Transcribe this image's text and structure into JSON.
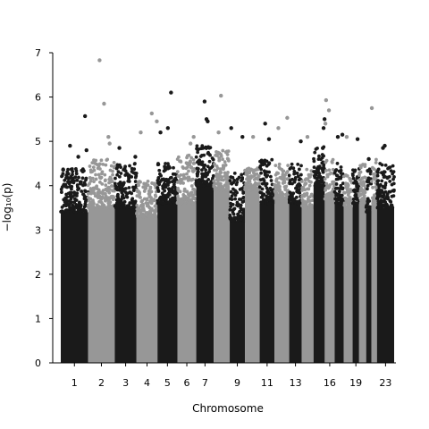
{
  "chart_data": {
    "type": "scatter",
    "title": "",
    "xlabel": "Chromosome",
    "ylabel": "−log₁₀(p)",
    "ylim": [
      0,
      7
    ],
    "yticks": [
      0,
      1,
      2,
      3,
      4,
      5,
      6,
      7
    ],
    "grid": false,
    "legend": "none",
    "colors": [
      "#1a1a1a",
      "#979797"
    ],
    "chromosomes": [
      {
        "label": "1",
        "show_label": true,
        "len": 248,
        "base": 3.4,
        "top": 4.4
      },
      {
        "label": "2",
        "show_label": true,
        "len": 242,
        "base": 3.5,
        "top": 4.6
      },
      {
        "label": "3",
        "show_label": true,
        "len": 198,
        "base": 3.5,
        "top": 4.5
      },
      {
        "label": "4",
        "show_label": true,
        "len": 190,
        "base": 3.3,
        "top": 4.1
      },
      {
        "label": "5",
        "show_label": true,
        "len": 181,
        "base": 3.6,
        "top": 4.5
      },
      {
        "label": "6",
        "show_label": true,
        "len": 171,
        "base": 3.6,
        "top": 4.7
      },
      {
        "label": "7",
        "show_label": true,
        "len": 159,
        "base": 4.0,
        "top": 4.9
      },
      {
        "label": "8",
        "show_label": false,
        "len": 145,
        "base": 3.9,
        "top": 4.8
      },
      {
        "label": "9",
        "show_label": true,
        "len": 138,
        "base": 3.2,
        "top": 4.3
      },
      {
        "label": "10",
        "show_label": false,
        "len": 134,
        "base": 3.9,
        "top": 4.4
      },
      {
        "label": "11",
        "show_label": true,
        "len": 135,
        "base": 3.6,
        "top": 4.6
      },
      {
        "label": "12",
        "show_label": false,
        "len": 133,
        "base": 3.7,
        "top": 4.5
      },
      {
        "label": "13",
        "show_label": true,
        "len": 114,
        "base": 3.6,
        "top": 4.5
      },
      {
        "label": "14",
        "show_label": false,
        "len": 107,
        "base": 3.5,
        "top": 4.4
      },
      {
        "label": "15",
        "show_label": false,
        "len": 102,
        "base": 4.0,
        "top": 4.9
      },
      {
        "label": "16",
        "show_label": true,
        "len": 90,
        "base": 3.7,
        "top": 4.6
      },
      {
        "label": "17",
        "show_label": false,
        "len": 83,
        "base": 3.6,
        "top": 4.5
      },
      {
        "label": "18",
        "show_label": false,
        "len": 80,
        "base": 3.5,
        "top": 4.3
      },
      {
        "label": "19",
        "show_label": true,
        "len": 59,
        "base": 3.6,
        "top": 4.4
      },
      {
        "label": "20",
        "show_label": false,
        "len": 64,
        "base": 3.6,
        "top": 4.5
      },
      {
        "label": "21",
        "show_label": false,
        "len": 47,
        "base": 3.4,
        "top": 4.4
      },
      {
        "label": "22",
        "show_label": false,
        "len": 51,
        "base": 3.6,
        "top": 4.6
      },
      {
        "label": "23",
        "show_label": true,
        "len": 156,
        "base": 3.5,
        "top": 4.5
      }
    ],
    "highlight_points": [
      {
        "chr": "1",
        "y": 4.65
      },
      {
        "chr": "1",
        "y": 4.8
      },
      {
        "chr": "1",
        "y": 4.9
      },
      {
        "chr": "1",
        "y": 5.57
      },
      {
        "chr": "2",
        "y": 5.85
      },
      {
        "chr": "2",
        "y": 6.83
      },
      {
        "chr": "2",
        "y": 5.1
      },
      {
        "chr": "2",
        "y": 4.95
      },
      {
        "chr": "3",
        "y": 4.85
      },
      {
        "chr": "3",
        "y": 4.65
      },
      {
        "chr": "4",
        "y": 5.63
      },
      {
        "chr": "4",
        "y": 5.45
      },
      {
        "chr": "4",
        "y": 5.2
      },
      {
        "chr": "5",
        "y": 6.1
      },
      {
        "chr": "5",
        "y": 5.3
      },
      {
        "chr": "5",
        "y": 5.2
      },
      {
        "chr": "6",
        "y": 5.1
      },
      {
        "chr": "6",
        "y": 4.95
      },
      {
        "chr": "7",
        "y": 5.9
      },
      {
        "chr": "7",
        "y": 5.5
      },
      {
        "chr": "7",
        "y": 5.45
      },
      {
        "chr": "8",
        "y": 6.03
      },
      {
        "chr": "8",
        "y": 5.2
      },
      {
        "chr": "9",
        "y": 5.3
      },
      {
        "chr": "9",
        "y": 5.1
      },
      {
        "chr": "10",
        "y": 5.1
      },
      {
        "chr": "11",
        "y": 5.4
      },
      {
        "chr": "11",
        "y": 5.05
      },
      {
        "chr": "12",
        "y": 5.53
      },
      {
        "chr": "12",
        "y": 5.3
      },
      {
        "chr": "13",
        "y": 5.0
      },
      {
        "chr": "14",
        "y": 5.1
      },
      {
        "chr": "15",
        "y": 5.5
      },
      {
        "chr": "15",
        "y": 5.3
      },
      {
        "chr": "16",
        "y": 5.93
      },
      {
        "chr": "16",
        "y": 5.7
      },
      {
        "chr": "16",
        "y": 5.4
      },
      {
        "chr": "17",
        "y": 5.15
      },
      {
        "chr": "17",
        "y": 5.1
      },
      {
        "chr": "18",
        "y": 5.1
      },
      {
        "chr": "19",
        "y": 5.05
      },
      {
        "chr": "21",
        "y": 4.6
      },
      {
        "chr": "22",
        "y": 5.75
      },
      {
        "chr": "23",
        "y": 4.85
      },
      {
        "chr": "23",
        "y": 4.9
      }
    ]
  }
}
